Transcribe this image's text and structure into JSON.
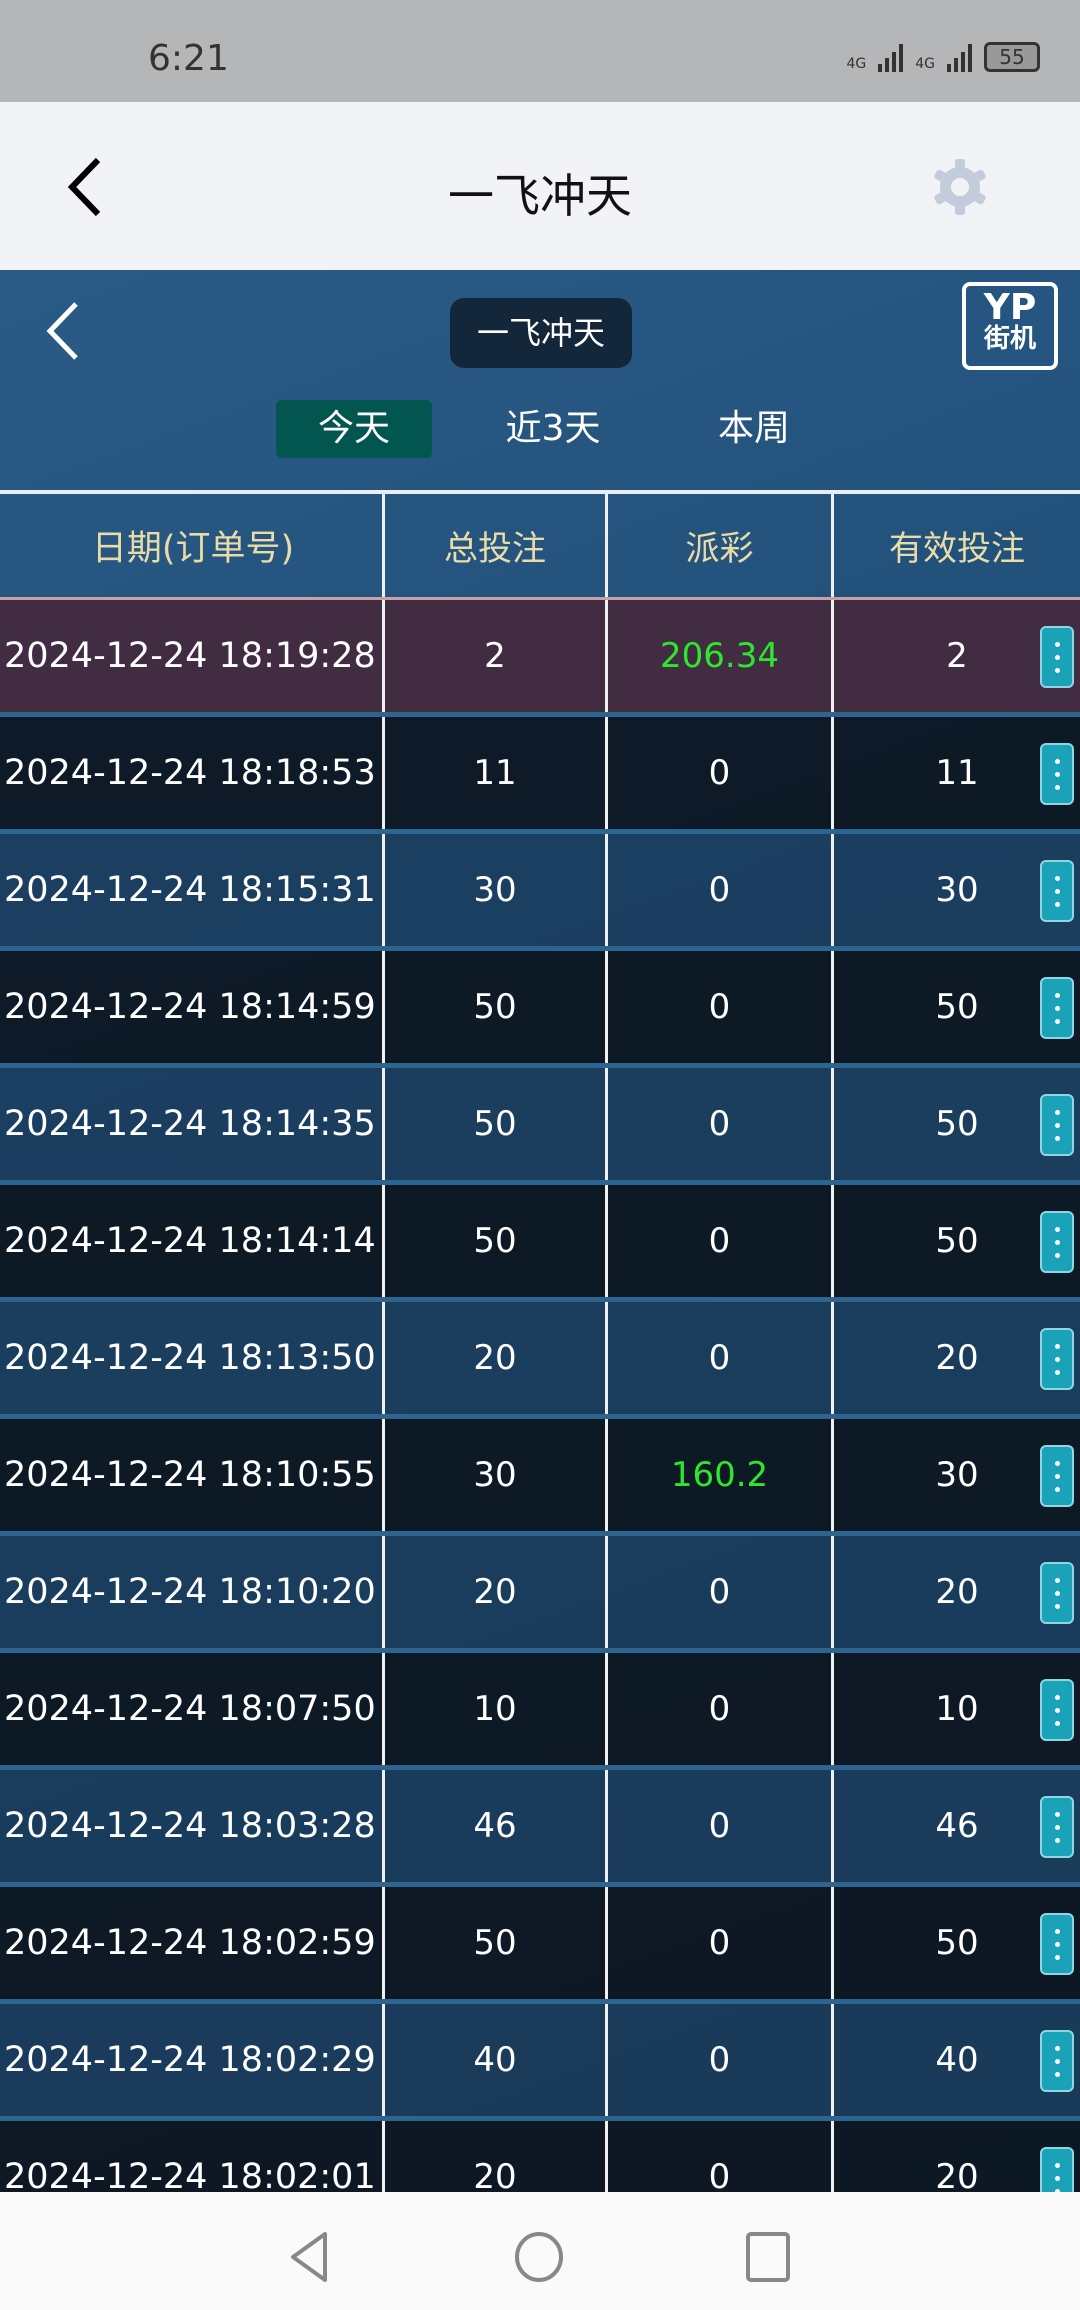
{
  "status_bar": {
    "time": "6:21",
    "network1": "4G",
    "network2": "4G",
    "battery": "55"
  },
  "app_bar": {
    "title": "一飞冲天",
    "back_icon": "chevron-left-icon",
    "settings_icon": "gear-icon"
  },
  "game": {
    "title": "一飞冲天",
    "logo_line1": "YP",
    "logo_line2": "街机",
    "tabs": [
      {
        "label": "今天",
        "active": true
      },
      {
        "label": "近3天",
        "active": false
      },
      {
        "label": "本周",
        "active": false
      }
    ]
  },
  "table": {
    "headers": [
      "日期(订单号)",
      "总投注",
      "派彩",
      "有效投注"
    ],
    "rows": [
      {
        "date": "2024-12-24 18:19:28",
        "bet": "2",
        "payout": "206.34",
        "valid": "2",
        "highlight": true
      },
      {
        "date": "2024-12-24 18:18:53",
        "bet": "11",
        "payout": "0",
        "valid": "11"
      },
      {
        "date": "2024-12-24 18:15:31",
        "bet": "30",
        "payout": "0",
        "valid": "30"
      },
      {
        "date": "2024-12-24 18:14:59",
        "bet": "50",
        "payout": "0",
        "valid": "50"
      },
      {
        "date": "2024-12-24 18:14:35",
        "bet": "50",
        "payout": "0",
        "valid": "50"
      },
      {
        "date": "2024-12-24 18:14:14",
        "bet": "50",
        "payout": "0",
        "valid": "50"
      },
      {
        "date": "2024-12-24 18:13:50",
        "bet": "20",
        "payout": "0",
        "valid": "20"
      },
      {
        "date": "2024-12-24 18:10:55",
        "bet": "30",
        "payout": "160.2",
        "valid": "30"
      },
      {
        "date": "2024-12-24 18:10:20",
        "bet": "20",
        "payout": "0",
        "valid": "20"
      },
      {
        "date": "2024-12-24 18:07:50",
        "bet": "10",
        "payout": "0",
        "valid": "10"
      },
      {
        "date": "2024-12-24 18:03:28",
        "bet": "46",
        "payout": "0",
        "valid": "46"
      },
      {
        "date": "2024-12-24 18:02:59",
        "bet": "50",
        "payout": "0",
        "valid": "50"
      },
      {
        "date": "2024-12-24 18:02:29",
        "bet": "40",
        "payout": "0",
        "valid": "40"
      },
      {
        "date": "2024-12-24 18:02:01",
        "bet": "20",
        "payout": "0",
        "valid": "20"
      }
    ]
  },
  "colors": {
    "win": "#2ee62e",
    "active_tab": "#03564f",
    "more_button": "#1aa2b8",
    "header_text": "#e9dca6"
  }
}
